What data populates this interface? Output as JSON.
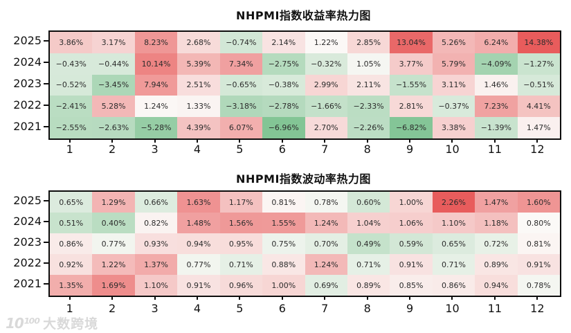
{
  "watermark": {
    "logo": "10¹⁰⁰",
    "text": "大数跨境"
  },
  "chart_data": [
    {
      "type": "heatmap",
      "title": "NHPMI指数收益率热力图",
      "ylabel": "",
      "xlabel": "",
      "rows": [
        "2025",
        "2024",
        "2023",
        "2022",
        "2021"
      ],
      "columns": [
        "1",
        "2",
        "3",
        "4",
        "5",
        "6",
        "7",
        "8",
        "9",
        "10",
        "11",
        "12"
      ],
      "unit": "%",
      "values": [
        [
          3.86,
          3.17,
          8.23,
          2.68,
          -0.74,
          2.14,
          1.22,
          2.85,
          13.04,
          5.26,
          6.24,
          14.38
        ],
        [
          -0.43,
          -0.44,
          10.14,
          5.39,
          7.34,
          -2.75,
          -0.32,
          1.05,
          3.77,
          5.79,
          -4.09,
          -1.27
        ],
        [
          -0.52,
          -3.45,
          7.94,
          2.51,
          -0.65,
          -0.38,
          2.99,
          2.11,
          -1.55,
          3.11,
          1.46,
          -0.51
        ],
        [
          -2.41,
          5.28,
          1.24,
          1.33,
          -3.18,
          -2.78,
          -1.66,
          -2.33,
          2.81,
          -0.37,
          7.23,
          4.41
        ],
        [
          -2.55,
          -2.63,
          -5.28,
          4.39,
          6.07,
          -6.96,
          2.7,
          -2.26,
          -6.82,
          3.38,
          -1.39,
          1.47
        ]
      ],
      "colormap": {
        "center": 1.2,
        "negative_color": "#4fae6b",
        "mid_color": "#fbf9f7",
        "positive_color": "#e85c5c"
      }
    },
    {
      "type": "heatmap",
      "title": "NHPMI指数波动率热力图",
      "ylabel": "",
      "xlabel": "",
      "rows": [
        "2025",
        "2024",
        "2023",
        "2022",
        "2021"
      ],
      "columns": [
        "1",
        "2",
        "3",
        "4",
        "5",
        "6",
        "7",
        "8",
        "9",
        "10",
        "11",
        "12"
      ],
      "unit": "%",
      "values": [
        [
          0.65,
          1.29,
          0.66,
          1.63,
          1.17,
          0.81,
          0.78,
          0.6,
          1.0,
          2.26,
          1.47,
          1.6
        ],
        [
          0.51,
          0.4,
          0.82,
          1.48,
          1.56,
          1.55,
          1.24,
          1.04,
          1.06,
          1.1,
          1.18,
          0.8
        ],
        [
          0.86,
          0.77,
          0.93,
          0.94,
          0.95,
          0.75,
          0.7,
          0.49,
          0.59,
          0.65,
          0.72,
          0.81
        ],
        [
          0.92,
          1.22,
          1.37,
          0.77,
          0.71,
          0.88,
          1.24,
          0.71,
          0.91,
          0.71,
          0.89,
          0.91
        ],
        [
          1.35,
          1.69,
          1.1,
          0.91,
          0.96,
          1.0,
          0.69,
          0.89,
          0.85,
          0.86,
          0.94,
          0.78
        ]
      ],
      "colormap": {
        "center": 0.8,
        "negative_color": "#4fae6b",
        "mid_color": "#fbf9f7",
        "positive_color": "#e85c5c"
      }
    }
  ]
}
